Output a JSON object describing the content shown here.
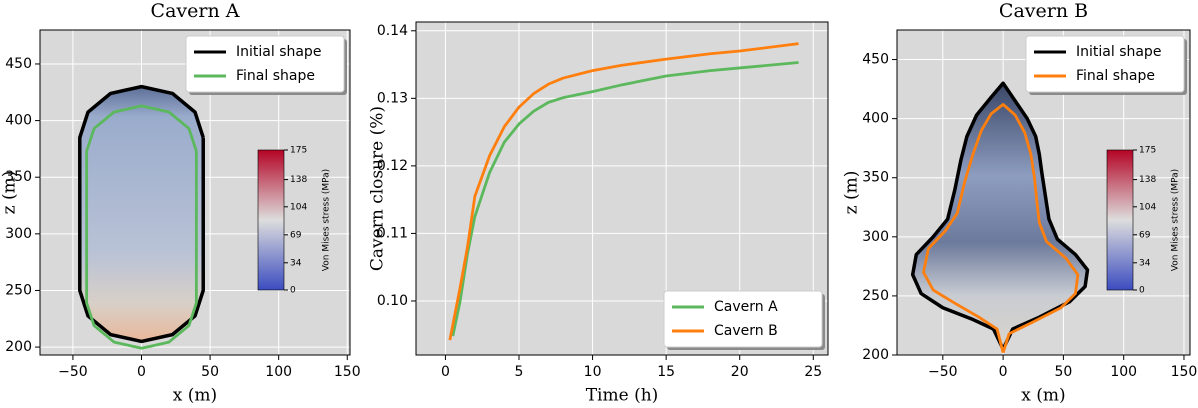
{
  "chart_data": [
    {
      "type": "line",
      "title": "Cavern A",
      "xlabel": "x (m)",
      "ylabel": "z (m)",
      "xlim": [
        -74,
        152
      ],
      "ylim": [
        193,
        480
      ],
      "xticks": [
        {
          "value": -50,
          "label": "−50"
        },
        0,
        50,
        100,
        150
      ],
      "yticks": [
        200,
        250,
        300,
        350,
        400,
        450
      ],
      "grid": true,
      "legend": "upper right",
      "series": [
        {
          "name": "Initial shape",
          "color": "#000000",
          "x": [
            45,
            39,
            22.5,
            0,
            -22.5,
            -39,
            -45,
            -45,
            -39,
            -22.5,
            0,
            22.5,
            39,
            45,
            45
          ],
          "values": [
            385,
            407.5,
            424,
            430,
            424,
            407.5,
            385,
            250,
            227.5,
            211,
            205,
            211,
            227.5,
            250,
            385
          ]
        },
        {
          "name": "Final shape",
          "color": "#5cb85c",
          "x": [
            40,
            34.6,
            20,
            0,
            -20,
            -34.6,
            -40,
            -40,
            -34.6,
            -20,
            0,
            20,
            34.6,
            40,
            40
          ],
          "values": [
            373,
            393,
            407.6,
            413,
            407.6,
            393,
            373,
            239,
            219,
            204.4,
            199,
            204.4,
            219,
            239,
            373
          ]
        }
      ],
      "colorbar": {
        "label": "Von Mises stress (MPa)",
        "lim": [
          0,
          175
        ],
        "ticks": [
          0,
          34,
          69,
          104,
          138,
          175
        ]
      }
    },
    {
      "type": "line",
      "xlabel": "Time (h)",
      "ylabel": "Cavern closure (%)",
      "xlim": [
        -2,
        26
      ],
      "ylim": [
        0.092,
        0.1413
      ],
      "xticks": [
        0,
        5,
        10,
        15,
        20,
        25
      ],
      "yticks": [
        {
          "value": 0.1,
          "label": "0.10"
        },
        0.11,
        0.12,
        0.13,
        0.14
      ],
      "grid": true,
      "legend": "lower right",
      "series": [
        {
          "name": "Cavern A",
          "color": "#5cb85c",
          "x": [
            0.5,
            1,
            1.5,
            2,
            3,
            4,
            5,
            6,
            7,
            8,
            10,
            12,
            15,
            18,
            20,
            24
          ],
          "values": [
            0.0948,
            0.1,
            0.107,
            0.1125,
            0.119,
            0.1235,
            0.1262,
            0.1281,
            0.1294,
            0.1301,
            0.131,
            0.132,
            0.1333,
            0.1341,
            0.1345,
            0.1353
          ]
        },
        {
          "name": "Cavern B",
          "color": "#ff7f0e",
          "x": [
            0.3,
            1,
            1.5,
            2,
            3,
            4,
            5,
            6,
            7,
            8,
            10,
            12,
            15,
            18,
            20,
            24
          ],
          "values": [
            0.0942,
            0.102,
            0.108,
            0.1155,
            0.1215,
            0.1258,
            0.1287,
            0.1307,
            0.1321,
            0.133,
            0.1341,
            0.1349,
            0.1358,
            0.1366,
            0.137,
            0.1381
          ]
        }
      ]
    },
    {
      "type": "line",
      "title": "Cavern B",
      "xlabel": "x (m)",
      "ylabel": "z (m)",
      "xlim": [
        -88,
        155
      ],
      "ylim": [
        200,
        475
      ],
      "xticks": [
        {
          "value": -50,
          "label": "−50"
        },
        0,
        50,
        100,
        150
      ],
      "yticks": [
        200,
        250,
        300,
        350,
        400,
        450
      ],
      "grid": true,
      "legend": "upper right",
      "series": [
        {
          "name": "Initial shape",
          "color": "#000000",
          "x": [
            0,
            8,
            30,
            55,
            68,
            70,
            60,
            45,
            38,
            35,
            32,
            30,
            27,
            20,
            10,
            0,
            -10,
            -22,
            -30,
            -35,
            -40,
            -46,
            -58,
            -72,
            -75,
            -68,
            -50,
            -25,
            -8,
            0
          ],
          "values": [
            205,
            222,
            232,
            245,
            258,
            272,
            285,
            298,
            315,
            335,
            355,
            370,
            385,
            400,
            415,
            430,
            418,
            403,
            385,
            365,
            340,
            315,
            300,
            285,
            268,
            252,
            240,
            230,
            222,
            205
          ]
        },
        {
          "name": "Final shape",
          "color": "#ff7f0e",
          "x": [
            0,
            5,
            25,
            48,
            60,
            62,
            52,
            36,
            30,
            28,
            26,
            23,
            18,
            10,
            0,
            -10,
            -18,
            -25,
            -32,
            -38,
            -48,
            -62,
            -66,
            -58,
            -42,
            -20,
            -5,
            0
          ],
          "values": [
            202,
            218,
            228,
            240,
            252,
            268,
            282,
            296,
            312,
            330,
            350,
            370,
            388,
            403,
            412,
            404,
            390,
            370,
            346,
            320,
            305,
            290,
            270,
            255,
            245,
            232,
            222,
            202
          ]
        }
      ],
      "colorbar": {
        "label": "Von Mises stress (MPa)",
        "lim": [
          0,
          175
        ],
        "ticks": [
          0,
          34,
          69,
          104,
          138,
          175
        ]
      }
    }
  ]
}
